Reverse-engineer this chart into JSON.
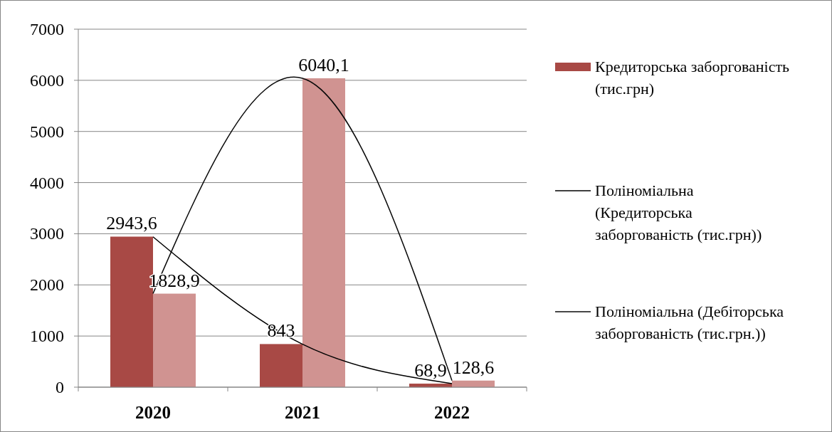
{
  "chart_data": {
    "type": "bar",
    "categories": [
      "2020",
      "2021",
      "2022"
    ],
    "series": [
      {
        "name": "Кредиторська заборгованість (тис.грн)",
        "color": "#a84945",
        "values": [
          2943.6,
          843,
          68.9
        ],
        "value_labels": [
          "2943,6",
          "843",
          "68,9"
        ]
      },
      {
        "color": "#d09391",
        "values": [
          1828.9,
          6040.1,
          128.6
        ],
        "value_labels": [
          "1828,9",
          "6040,1",
          "128,6"
        ]
      },
      {
        "type": "line",
        "name": "Поліноміальна (Кредиторська заборгованість (тис.грн))",
        "color": "#000000",
        "values": [
          2940,
          840,
          70
        ]
      },
      {
        "type": "line",
        "name": "Поліноміальна (Дебіторська заборгованість (тис.грн.))",
        "color": "#0a0a0a",
        "values": [
          1830,
          6040,
          130
        ]
      }
    ],
    "ylim": [
      0,
      7000
    ],
    "yticks": [
      0,
      1000,
      2000,
      3000,
      4000,
      5000,
      6000,
      7000
    ],
    "grid": "y",
    "legend": "right"
  }
}
